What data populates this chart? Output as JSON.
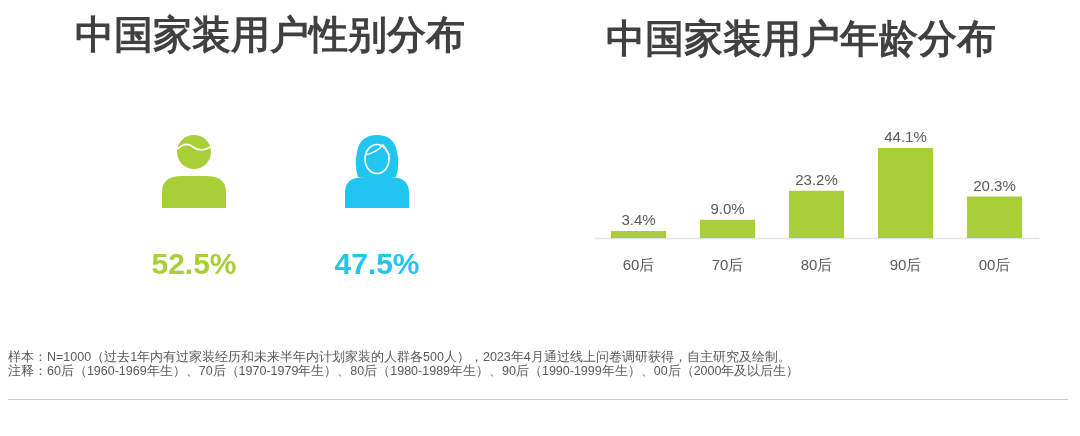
{
  "chart_data": [
    {
      "type": "other",
      "title": "中国家装用户性别分布",
      "categories": [
        null,
        null
      ],
      "values": [
        52.5,
        47.5
      ],
      "value_labels": [
        "52.5%",
        "47.5%"
      ],
      "colors": [
        "#a9cf38",
        "#22c5ef"
      ]
    },
    {
      "type": "bar",
      "title": "中国家装用户年龄分布",
      "categories": [
        "60后",
        "70后",
        "80后",
        "90后",
        "00后"
      ],
      "values": [
        3.4,
        9.0,
        23.2,
        44.1,
        20.3
      ],
      "value_labels": [
        "3.4%",
        "9.0%",
        "23.2%",
        "44.1%",
        "20.3%"
      ],
      "color": "#a9cf38",
      "tick_labels": "x",
      "annotations": [
        "样本：N=1000（过去1年内有过家装经历和未来半年内计划家装的人群各500人），2023年4月通过线上问卷调研获得，自主研究及绘制。",
        "注释：60后（1960-1969年生）、70后（1970-1979年生）、80后（1980-1989年生）、90后（1990-1999年生）、00后（2000年及以后生）"
      ]
    }
  ]
}
